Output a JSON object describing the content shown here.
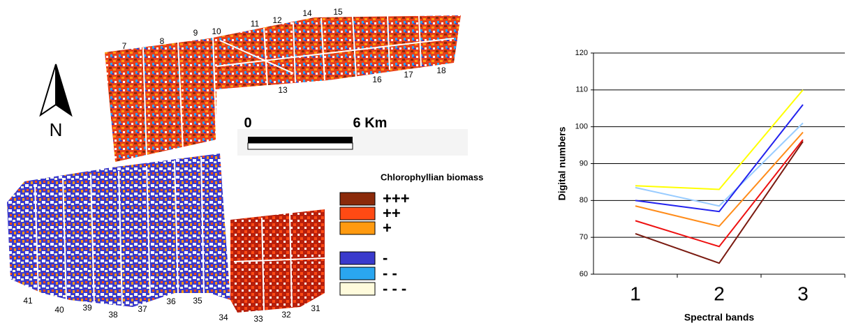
{
  "map": {
    "field_labels": [
      "7",
      "8",
      "9",
      "10",
      "11",
      "12",
      "14",
      "15",
      "13",
      "16",
      "17",
      "18",
      "41",
      "40",
      "39",
      "38",
      "37",
      "36",
      "35",
      "34",
      "33",
      "32",
      "31"
    ],
    "north": "N",
    "scale": {
      "start": "0",
      "end": "6 Km"
    },
    "legend": {
      "title": "Chlorophyllian biomass",
      "items": [
        {
          "label": "+++",
          "color": "#8b2a0a"
        },
        {
          "label": "++",
          "color": "#ff4a14"
        },
        {
          "label": "+",
          "color": "#ff9a10"
        },
        {
          "label": "-",
          "color": "#3a3acc"
        },
        {
          "label": "- -",
          "color": "#2aa6f0"
        },
        {
          "label": "- - -",
          "color": "#fffbdc"
        }
      ]
    }
  },
  "chart_data": {
    "type": "line",
    "xlabel": "Spectral bands",
    "ylabel": "Digital numbers",
    "categories": [
      "1",
      "2",
      "3"
    ],
    "ylim": [
      60,
      120
    ],
    "yticks": [
      60,
      70,
      80,
      90,
      100,
      110,
      120
    ],
    "grid": true,
    "series": [
      {
        "color": "#ffff00",
        "values": [
          84,
          83,
          110
        ]
      },
      {
        "color": "#99ccff",
        "values": [
          83.5,
          78.5,
          101
        ]
      },
      {
        "color": "#2222ee",
        "values": [
          80,
          77,
          106
        ]
      },
      {
        "color": "#ff8c1a",
        "values": [
          78.5,
          73,
          98.5
        ]
      },
      {
        "color": "#ee1111",
        "values": [
          74.5,
          67.5,
          96.5
        ]
      },
      {
        "color": "#7a1a10",
        "values": [
          71,
          63,
          96
        ]
      }
    ]
  }
}
